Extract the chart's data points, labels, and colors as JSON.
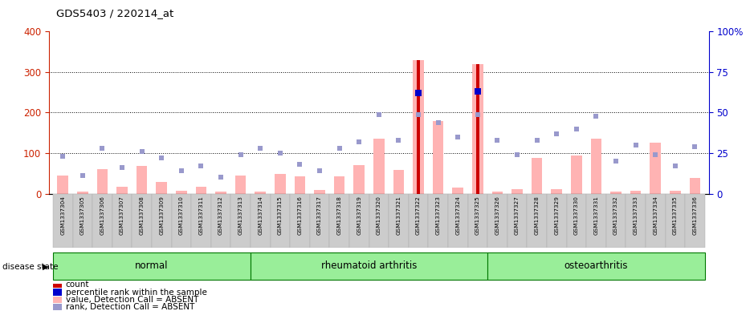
{
  "title": "GDS5403 / 220214_at",
  "samples": [
    "GSM1337304",
    "GSM1337305",
    "GSM1337306",
    "GSM1337307",
    "GSM1337308",
    "GSM1337309",
    "GSM1337310",
    "GSM1337311",
    "GSM1337312",
    "GSM1337313",
    "GSM1337314",
    "GSM1337315",
    "GSM1337316",
    "GSM1337317",
    "GSM1337318",
    "GSM1337319",
    "GSM1337320",
    "GSM1337321",
    "GSM1337322",
    "GSM1337323",
    "GSM1337324",
    "GSM1337325",
    "GSM1337326",
    "GSM1337327",
    "GSM1337328",
    "GSM1337329",
    "GSM1337330",
    "GSM1337331",
    "GSM1337332",
    "GSM1337333",
    "GSM1337334",
    "GSM1337335",
    "GSM1337336"
  ],
  "pink_bars": [
    45,
    5,
    60,
    18,
    68,
    30,
    8,
    18,
    5,
    45,
    5,
    48,
    42,
    10,
    42,
    70,
    135,
    58,
    330,
    180,
    15,
    320,
    5,
    12,
    88,
    12,
    95,
    135,
    5,
    8,
    125,
    8,
    38
  ],
  "blue_sq_pct": [
    23,
    11,
    28,
    16,
    26,
    22,
    14,
    17,
    10,
    24,
    28,
    25,
    18,
    14,
    28,
    32,
    49,
    33,
    49,
    44,
    35,
    49,
    33,
    24,
    33,
    37,
    40,
    48,
    20,
    30,
    24,
    17,
    29
  ],
  "count_vals": [
    0,
    0,
    0,
    0,
    0,
    0,
    0,
    0,
    0,
    0,
    0,
    0,
    0,
    0,
    0,
    0,
    0,
    0,
    330,
    0,
    0,
    320,
    0,
    0,
    0,
    0,
    0,
    0,
    0,
    0,
    0,
    0,
    0
  ],
  "percentile_pct": [
    0,
    0,
    0,
    0,
    0,
    0,
    0,
    0,
    0,
    0,
    0,
    0,
    0,
    0,
    0,
    0,
    0,
    0,
    62,
    0,
    0,
    63,
    0,
    0,
    0,
    0,
    0,
    0,
    0,
    0,
    0,
    0,
    0
  ],
  "groups": [
    {
      "label": "normal",
      "start": 0,
      "end": 9
    },
    {
      "label": "rheumatoid arthritis",
      "start": 10,
      "end": 21
    },
    {
      "label": "osteoarthritis",
      "start": 22,
      "end": 32
    }
  ],
  "left_ylim": [
    0,
    400
  ],
  "left_yticks": [
    0,
    100,
    200,
    300,
    400
  ],
  "right_ylim": [
    0,
    100
  ],
  "right_yticks": [
    0,
    25,
    50,
    75,
    100
  ],
  "left_ycolor": "#cc2200",
  "right_ycolor": "#0000cc",
  "pink_bar_color": "#ffb3b3",
  "blue_sq_color": "#9999cc",
  "count_color": "#cc0000",
  "percentile_color": "#0000cc",
  "group_color": "#99ee99",
  "group_border_color": "#007700",
  "grid_color": "#000000",
  "bg_color": "#ffffff",
  "xlabels_bg": "#cccccc",
  "legend_items": [
    {
      "label": "count",
      "color": "#cc0000"
    },
    {
      "label": "percentile rank within the sample",
      "color": "#0000cc"
    },
    {
      "label": "value, Detection Call = ABSENT",
      "color": "#ffb3b3"
    },
    {
      "label": "rank, Detection Call = ABSENT",
      "color": "#9999cc"
    }
  ]
}
